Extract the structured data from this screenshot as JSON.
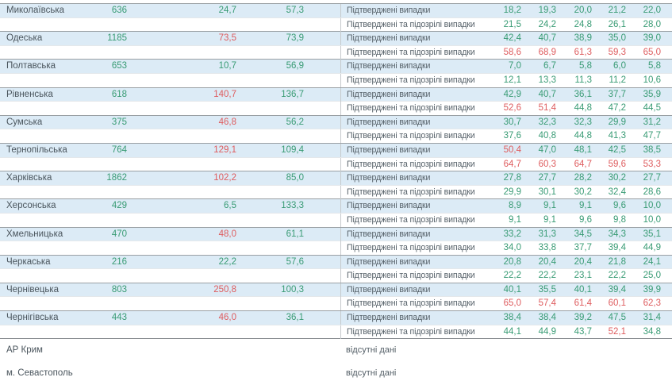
{
  "table": {
    "case_labels": [
      "Підтверджені випадки",
      "Підтверджені та підозрілі випадки"
    ],
    "no_data_text": "відсутні дані",
    "colors": {
      "green_value": "#389b74",
      "red_value": "#de5c5e",
      "stripe_blue": "#dcebf6",
      "text_dark": "#4a555d"
    },
    "regions": [
      {
        "name": "Миколаївська",
        "total": "636",
        "rate1": "24,7",
        "rate1_red": 0,
        "rate2": "57,3",
        "rows": [
          {
            "label": "Підтверджені випадки",
            "values": [
              "18,2",
              "19,3",
              "20,0",
              "21,2",
              "22,0"
            ],
            "red": [
              0,
              0,
              0,
              0,
              0
            ]
          },
          {
            "label": "Підтверджені та підозрілі випадки",
            "values": [
              "21,5",
              "24,2",
              "24,8",
              "26,1",
              "28,0"
            ],
            "red": [
              0,
              0,
              0,
              0,
              0
            ]
          }
        ]
      },
      {
        "name": "Одеська",
        "total": "1185",
        "rate1": "73,5",
        "rate1_red": 1,
        "rate2": "73,9",
        "rows": [
          {
            "label": "Підтверджені випадки",
            "values": [
              "42,4",
              "40,7",
              "38,9",
              "35,0",
              "39,0"
            ],
            "red": [
              0,
              0,
              0,
              0,
              0
            ]
          },
          {
            "label": "Підтверджені та підозрілі випадки",
            "values": [
              "58,6",
              "68,9",
              "61,3",
              "59,3",
              "65,0"
            ],
            "red": [
              1,
              1,
              1,
              1,
              1
            ]
          }
        ]
      },
      {
        "name": "Полтавська",
        "total": "653",
        "rate1": "10,7",
        "rate1_red": 0,
        "rate2": "56,9",
        "rows": [
          {
            "label": "Підтверджені випадки",
            "values": [
              "7,0",
              "6,7",
              "5,8",
              "6,0",
              "5,8"
            ],
            "red": [
              0,
              0,
              0,
              0,
              0
            ]
          },
          {
            "label": "Підтверджені та підозрілі випадки",
            "values": [
              "12,1",
              "13,3",
              "11,3",
              "11,2",
              "10,6"
            ],
            "red": [
              0,
              0,
              0,
              0,
              0
            ]
          }
        ]
      },
      {
        "name": "Рівненська",
        "total": "618",
        "rate1": "140,7",
        "rate1_red": 1,
        "rate2": "136,7",
        "rows": [
          {
            "label": "Підтверджені випадки",
            "values": [
              "42,9",
              "40,7",
              "36,1",
              "37,7",
              "35,9"
            ],
            "red": [
              0,
              0,
              0,
              0,
              0
            ]
          },
          {
            "label": "Підтверджені та підозрілі випадки",
            "values": [
              "52,6",
              "51,4",
              "44,8",
              "47,2",
              "44,5"
            ],
            "red": [
              1,
              1,
              0,
              0,
              0
            ]
          }
        ]
      },
      {
        "name": "Сумська",
        "total": "375",
        "rate1": "46,8",
        "rate1_red": 1,
        "rate2": "56,2",
        "rows": [
          {
            "label": "Підтверджені випадки",
            "values": [
              "30,7",
              "32,3",
              "32,3",
              "29,9",
              "31,2"
            ],
            "red": [
              0,
              0,
              0,
              0,
              0
            ]
          },
          {
            "label": "Підтверджені та підозрілі випадки",
            "values": [
              "37,6",
              "40,8",
              "44,8",
              "41,3",
              "47,7"
            ],
            "red": [
              0,
              0,
              0,
              0,
              0
            ]
          }
        ]
      },
      {
        "name": "Тернопільська",
        "total": "764",
        "rate1": "129,1",
        "rate1_red": 1,
        "rate2": "109,4",
        "rows": [
          {
            "label": "Підтверджені випадки",
            "values": [
              "50,4",
              "47,0",
              "48,1",
              "42,5",
              "38,5"
            ],
            "red": [
              1,
              0,
              0,
              0,
              0
            ]
          },
          {
            "label": "Підтверджені та підозрілі випадки",
            "values": [
              "64,7",
              "60,3",
              "64,7",
              "59,6",
              "53,3"
            ],
            "red": [
              1,
              1,
              1,
              1,
              1
            ]
          }
        ]
      },
      {
        "name": "Харківська",
        "total": "1862",
        "rate1": "102,2",
        "rate1_red": 1,
        "rate2": "85,0",
        "rows": [
          {
            "label": "Підтверджені випадки",
            "values": [
              "27,8",
              "27,7",
              "28,2",
              "30,2",
              "27,7"
            ],
            "red": [
              0,
              0,
              0,
              0,
              0
            ]
          },
          {
            "label": "Підтверджені та підозрілі випадки",
            "values": [
              "29,9",
              "30,1",
              "30,2",
              "32,4",
              "28,6"
            ],
            "red": [
              0,
              0,
              0,
              0,
              0
            ]
          }
        ]
      },
      {
        "name": "Херсонська",
        "total": "429",
        "rate1": "6,5",
        "rate1_red": 0,
        "rate2": "133,3",
        "rows": [
          {
            "label": "Підтверджені випадки",
            "values": [
              "8,9",
              "9,1",
              "9,1",
              "9,6",
              "10,0"
            ],
            "red": [
              0,
              0,
              0,
              0,
              0
            ]
          },
          {
            "label": "Підтверджені та підозрілі випадки",
            "values": [
              "9,1",
              "9,1",
              "9,6",
              "9,8",
              "10,0"
            ],
            "red": [
              0,
              0,
              0,
              0,
              0
            ]
          }
        ]
      },
      {
        "name": "Хмельницька",
        "total": "470",
        "rate1": "48,0",
        "rate1_red": 1,
        "rate2": "61,1",
        "rows": [
          {
            "label": "Підтверджені випадки",
            "values": [
              "33,2",
              "31,3",
              "34,5",
              "34,3",
              "35,1"
            ],
            "red": [
              0,
              0,
              0,
              0,
              0
            ]
          },
          {
            "label": "Підтверджені та підозрілі випадки",
            "values": [
              "34,0",
              "33,8",
              "37,7",
              "39,4",
              "44,9"
            ],
            "red": [
              0,
              0,
              0,
              0,
              0
            ]
          }
        ]
      },
      {
        "name": "Черкаська",
        "total": "216",
        "rate1": "22,2",
        "rate1_red": 0,
        "rate2": "57,6",
        "rows": [
          {
            "label": "Підтверджені випадки",
            "values": [
              "20,8",
              "20,4",
              "20,4",
              "21,8",
              "24,1"
            ],
            "red": [
              0,
              0,
              0,
              0,
              0
            ]
          },
          {
            "label": "Підтверджені та підозрілі випадки",
            "values": [
              "22,2",
              "22,2",
              "23,1",
              "22,2",
              "25,0"
            ],
            "red": [
              0,
              0,
              0,
              0,
              0
            ]
          }
        ]
      },
      {
        "name": "Чернівецька",
        "total": "803",
        "rate1": "250,8",
        "rate1_red": 1,
        "rate2": "100,3",
        "rows": [
          {
            "label": "Підтверджені випадки",
            "values": [
              "40,1",
              "35,5",
              "40,1",
              "39,4",
              "39,9"
            ],
            "red": [
              0,
              0,
              0,
              0,
              0
            ]
          },
          {
            "label": "Підтверджені та підозрілі випадки",
            "values": [
              "65,0",
              "57,4",
              "61,4",
              "60,1",
              "62,3"
            ],
            "red": [
              1,
              1,
              1,
              1,
              1
            ]
          }
        ]
      },
      {
        "name": "Чернігівська",
        "total": "443",
        "rate1": "46,0",
        "rate1_red": 1,
        "rate2": "36,1",
        "rows": [
          {
            "label": "Підтверджені випадки",
            "values": [
              "38,4",
              "38,4",
              "39,2",
              "47,5",
              "31,4"
            ],
            "red": [
              0,
              0,
              0,
              0,
              0
            ]
          },
          {
            "label": "Підтверджені та підозрілі випадки",
            "values": [
              "44,1",
              "44,9",
              "43,7",
              "52,1",
              "34,8"
            ],
            "red": [
              0,
              0,
              0,
              1,
              0
            ]
          }
        ]
      }
    ],
    "no_data_regions": [
      {
        "name": "АР Крим",
        "value": "відсутні дані"
      },
      {
        "name": "м. Севастополь",
        "value": "відсутні дані"
      }
    ]
  }
}
